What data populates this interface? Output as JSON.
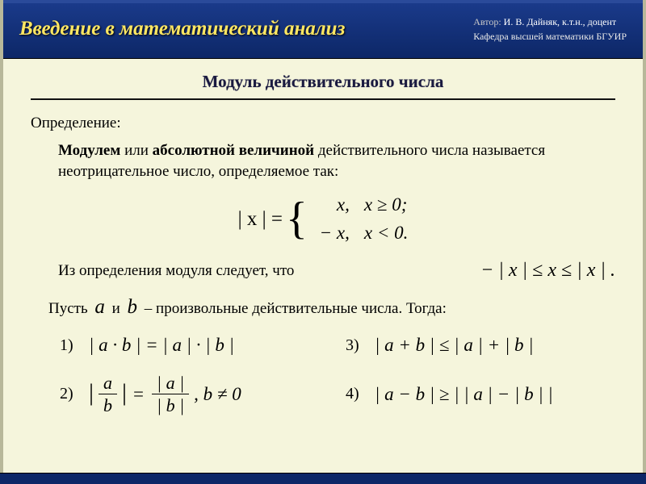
{
  "header": {
    "title": "Введение в математический анализ",
    "author_label": "Автор:",
    "author_name": "И. В. Дайняк,  к.т.н.,  доцент",
    "department": "Кафедра высшей математики БГУИР"
  },
  "section": {
    "title": "Модуль действительного числа",
    "definition_label": "Определение:",
    "body_bold1": "Модулем",
    "body_mid1": " или ",
    "body_bold2": "абсолютной величиной",
    "body_rest": " действительного числа называется неотрицательное число, определяемое так:"
  },
  "formula": {
    "lhs": "| x | =",
    "case1_val": "x,",
    "case1_cond": "x ≥ 0;",
    "case2_val": "− x,",
    "case2_cond": "x < 0."
  },
  "followup": {
    "text": "Из определения модуля следует, что",
    "inequality": "− | x | ≤ x ≤ | x | ."
  },
  "line3": {
    "pre": "Пусть ",
    "a": "a",
    "mid1": " и ",
    "b": "b",
    "mid2": "  –  произвольные действительные числа.  Тогда:"
  },
  "properties": {
    "p1_num": "1)",
    "p1_expr": "| a · b | = | a | · | b |",
    "p2_num": "2)",
    "p2_side": ",   b ≠ 0",
    "p2_frac_num_l": "a",
    "p2_frac_den_l": "b",
    "p2_eq": "=",
    "p2_frac_num_r": "| a |",
    "p2_frac_den_r": "| b |",
    "p3_num": "3)",
    "p3_expr": "| a + b | ≤ | a | + | b |",
    "p4_num": "4)",
    "p4_expr": "| a − b | ≥ | | a | − | b | |"
  },
  "style": {
    "header_bg_top": "#1a3a8a",
    "header_bg_bottom": "#0d2767",
    "title_color": "#ffe763",
    "body_bg": "#f5f5dc",
    "footer_bg": "#0d2767",
    "section_title_color": "#1a1a40",
    "rule_color": "#111111",
    "body_fontsize": 19,
    "math_fontsize": 25,
    "inline_math_fontsize": 24,
    "header_title_fontsize": 25,
    "section_title_fontsize": 21
  }
}
